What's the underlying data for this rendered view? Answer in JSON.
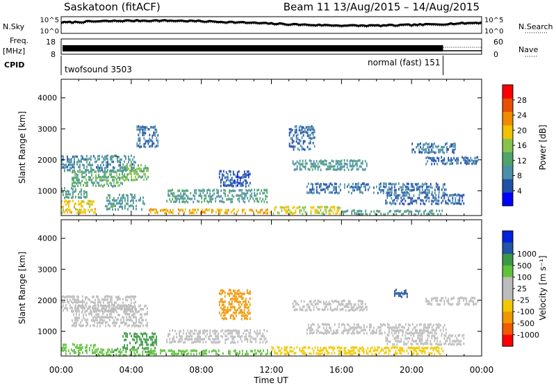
{
  "header": {
    "station": "Saskatoon (fitACF)",
    "beam_range": "Beam 11  13/Aug/2015 – 14/Aug/2015"
  },
  "strips": {
    "nsky_label": "N.Sky",
    "nsearch_label": "N.Search",
    "noise_ticks": [
      "10^5",
      "10^0"
    ],
    "freq_label": "Freq.",
    "freq_unit": "[MHz]",
    "freq_ticks": [
      "18",
      "8"
    ],
    "nave_label": "Nave",
    "nave_ticks": [
      "60",
      "0"
    ],
    "cpid_label": "CPID",
    "cpid_entries": [
      {
        "name": "twofsound 3503",
        "start_hour": 0.0
      },
      {
        "name": "normal (fast) 151",
        "start_hour": 21.8
      }
    ]
  },
  "colors": {
    "power": [
      "#0000ff",
      "#1f4fa8",
      "#4c8fa8",
      "#4fa36b",
      "#87c24e",
      "#f0c300",
      "#f08a00",
      "#e85000",
      "#ff0000"
    ],
    "velocity": [
      "#ff0000",
      "#f05a00",
      "#f09600",
      "#f0c800",
      "#bcbcbc",
      "#bcbcbc",
      "#5fc23a",
      "#3a9a44",
      "#2255a5",
      "#0022dd"
    ]
  },
  "chart_data": [
    {
      "type": "heatmap",
      "name": "power",
      "ylabel": "Slant Range [km]",
      "ylim": [
        200,
        4600
      ],
      "yticks": [
        1000,
        2000,
        3000,
        4000
      ],
      "xlim": [
        0,
        24
      ],
      "colorbar_label": "Power [dB]",
      "colorbar_ticks": [
        4,
        8,
        12,
        16,
        20,
        24,
        28
      ],
      "colorbar_range": [
        0,
        32
      ],
      "regions": [
        {
          "t": [
            0.0,
            4.3
          ],
          "r": [
            1650,
            2150
          ],
          "v": 10
        },
        {
          "t": [
            0.6,
            3.5
          ],
          "r": [
            1150,
            1650
          ],
          "v": 14
        },
        {
          "t": [
            3.5,
            5.0
          ],
          "r": [
            1350,
            1850
          ],
          "v": 17
        },
        {
          "t": [
            0.0,
            2.0
          ],
          "r": [
            220,
            700
          ],
          "v": 22
        },
        {
          "t": [
            0.0,
            1.5
          ],
          "r": [
            700,
            1100
          ],
          "v": 13
        },
        {
          "t": [
            2.5,
            4.8
          ],
          "r": [
            350,
            900
          ],
          "v": 11
        },
        {
          "t": [
            4.3,
            5.6
          ],
          "r": [
            2350,
            3100
          ],
          "v": 8
        },
        {
          "t": [
            6.0,
            11.8
          ],
          "r": [
            600,
            1050
          ],
          "v": 12
        },
        {
          "t": [
            9.0,
            10.8
          ],
          "r": [
            1150,
            1650
          ],
          "v": 6
        },
        {
          "t": [
            5.0,
            12.0
          ],
          "r": [
            220,
            420
          ],
          "v": 24
        },
        {
          "t": [
            12.0,
            16.0
          ],
          "r": [
            220,
            500
          ],
          "v": 21
        },
        {
          "t": [
            16.0,
            21.8
          ],
          "r": [
            220,
            380
          ],
          "v": 13
        },
        {
          "t": [
            13.2,
            17.5
          ],
          "r": [
            1600,
            2000
          ],
          "v": 11
        },
        {
          "t": [
            14.0,
            22.0
          ],
          "r": [
            850,
            1250
          ],
          "v": 8
        },
        {
          "t": [
            18.5,
            23.0
          ],
          "r": [
            500,
            900
          ],
          "v": 7
        },
        {
          "t": [
            20.8,
            23.8
          ],
          "r": [
            1800,
            2100
          ],
          "v": 7
        },
        {
          "t": [
            20.0,
            22.5
          ],
          "r": [
            2200,
            2550
          ],
          "v": 9
        },
        {
          "t": [
            13.0,
            14.5
          ],
          "r": [
            2300,
            3100
          ],
          "v": 8
        }
      ]
    },
    {
      "type": "heatmap",
      "name": "velocity",
      "ylabel": "Slant Range [km]",
      "ylim": [
        200,
        4600
      ],
      "yticks": [
        1000,
        2000,
        3000,
        4000
      ],
      "xlabel": "Time UT",
      "xlim": [
        0,
        24
      ],
      "xticks": [
        0,
        4,
        8,
        12,
        16,
        20,
        24
      ],
      "xticklabels": [
        "00:00",
        "04:00",
        "08:00",
        "12:00",
        "16:00",
        "20:00",
        "00:00"
      ],
      "colorbar_label": "Velocity [m s⁻¹]",
      "colorbar_ticks": [
        "-1000",
        "-500",
        "-100",
        "-25",
        "25",
        "100",
        "500",
        "1000"
      ],
      "regions": [
        {
          "t": [
            0.0,
            4.3
          ],
          "r": [
            1650,
            2150
          ],
          "v": -10
        },
        {
          "t": [
            0.6,
            5.0
          ],
          "r": [
            1150,
            1850
          ],
          "v": 5
        },
        {
          "t": [
            0.0,
            2.0
          ],
          "r": [
            220,
            600
          ],
          "v": 70
        },
        {
          "t": [
            2.0,
            5.2
          ],
          "r": [
            220,
            450
          ],
          "v": 90
        },
        {
          "t": [
            3.5,
            5.5
          ],
          "r": [
            450,
            950
          ],
          "v": 150
        },
        {
          "t": [
            6.0,
            11.8
          ],
          "r": [
            600,
            1050
          ],
          "v": 0
        },
        {
          "t": [
            5.0,
            12.0
          ],
          "r": [
            220,
            400
          ],
          "v": 60
        },
        {
          "t": [
            9.0,
            10.8
          ],
          "r": [
            1350,
            2350
          ],
          "v": -300
        },
        {
          "t": [
            12.0,
            21.8
          ],
          "r": [
            220,
            500
          ],
          "v": -80
        },
        {
          "t": [
            13.2,
            17.5
          ],
          "r": [
            1600,
            2000
          ],
          "v": 5
        },
        {
          "t": [
            14.0,
            22.0
          ],
          "r": [
            850,
            1250
          ],
          "v": -5
        },
        {
          "t": [
            18.5,
            23.0
          ],
          "r": [
            500,
            900
          ],
          "v": 10
        },
        {
          "t": [
            20.8,
            23.8
          ],
          "r": [
            1800,
            2100
          ],
          "v": 0
        },
        {
          "t": [
            19.0,
            19.8
          ],
          "r": [
            2100,
            2350
          ],
          "v": 700
        }
      ]
    }
  ]
}
